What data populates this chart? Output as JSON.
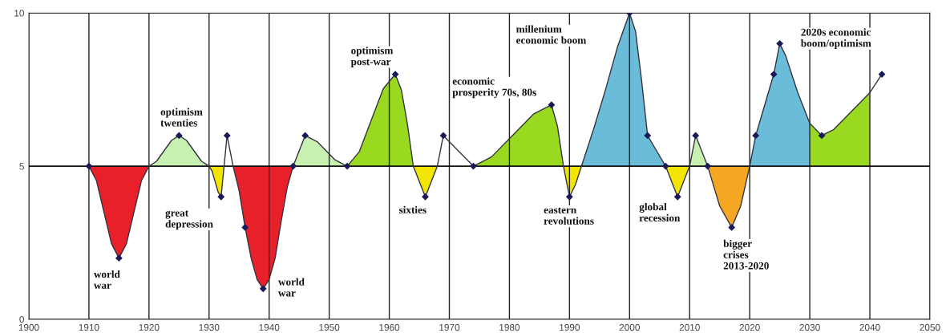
{
  "chart_data": {
    "type": "line",
    "xlim": [
      1900,
      2050
    ],
    "ylim": [
      0,
      10
    ],
    "xticks": [
      1900,
      1910,
      1920,
      1930,
      1940,
      1950,
      1960,
      1970,
      1980,
      1990,
      2000,
      2010,
      2020,
      2030,
      2040,
      2050
    ],
    "yticks": [
      0,
      5,
      10
    ],
    "grid": true,
    "line_style": "solid",
    "ref_lines": [
      {
        "axis": "y",
        "value": 5,
        "color": "#000000"
      }
    ],
    "series": [
      {
        "type": "area",
        "marker": "none",
        "color": "#e8202a",
        "x": [
          1910,
          1911.25,
          1912.5,
          1913.75,
          1915,
          1916.25,
          1917.5,
          1918.75,
          1920
        ],
        "values": [
          5,
          4.53,
          3.5,
          2.47,
          2,
          2.47,
          3.5,
          4.53,
          5
        ]
      },
      {
        "type": "area",
        "marker": "none",
        "color": "#c8f0b0",
        "x": [
          1920,
          1921.25,
          1922.5,
          1923.75,
          1925,
          1926.25,
          1927.5,
          1928.75,
          1930
        ],
        "values": [
          5,
          5.16,
          5.5,
          5.84,
          6,
          5.84,
          5.5,
          5.16,
          5
        ]
      },
      {
        "type": "area",
        "marker": "none",
        "color": "#f2e600",
        "x": [
          1930,
          1930.5,
          1931,
          1931.5,
          1932,
          1932.25,
          1932.5
        ],
        "values": [
          5,
          4.84,
          4.5,
          4.16,
          4,
          4.5,
          5
        ]
      },
      {
        "type": "area",
        "marker": "none",
        "color": "#e8202a",
        "x": [
          1934,
          1935,
          1936,
          1937,
          1938,
          1939,
          1940,
          1941,
          1942,
          1943,
          1944
        ],
        "values": [
          5,
          4.2,
          3,
          2,
          1.3,
          1,
          1.3,
          2,
          3.2,
          4.3,
          5
        ]
      },
      {
        "type": "area",
        "marker": "none",
        "color": "#c8f0b0",
        "x": [
          1944,
          1945,
          1946,
          1948,
          1949.5,
          1951,
          1953
        ],
        "values": [
          5,
          5.5,
          6,
          5.8,
          5.5,
          5.2,
          5
        ]
      },
      {
        "type": "area",
        "marker": "none",
        "color": "#99d91f",
        "x": [
          1953,
          1955,
          1957,
          1959,
          1961,
          1962,
          1963,
          1964
        ],
        "values": [
          5,
          5.47,
          6.5,
          7.53,
          8,
          7.5,
          6.4,
          5
        ]
      },
      {
        "type": "area",
        "marker": "none",
        "color": "#f2e600",
        "x": [
          1964,
          1965,
          1966,
          1967,
          1968
        ],
        "values": [
          5,
          4.5,
          4,
          4.5,
          5
        ]
      },
      {
        "type": "area",
        "marker": "none",
        "color": "#99d91f",
        "x": [
          1974,
          1977,
          1980.5,
          1984,
          1987,
          1988,
          1989
        ],
        "values": [
          5,
          5.3,
          6,
          6.7,
          7,
          6.3,
          5
        ]
      },
      {
        "type": "area",
        "marker": "none",
        "color": "#f2e600",
        "x": [
          1989,
          1990,
          1991,
          1992
        ],
        "values": [
          5,
          4,
          4.4,
          5
        ]
      },
      {
        "type": "area",
        "marker": "none",
        "color": "#6bbcd9",
        "x": [
          1992,
          1994,
          1996,
          1998,
          2000,
          2001,
          2002,
          2003,
          2004.5,
          2006
        ],
        "values": [
          5,
          6.2,
          7.5,
          8.9,
          10,
          9.4,
          7.8,
          6,
          5.5,
          5
        ]
      },
      {
        "type": "area",
        "marker": "none",
        "color": "#f2e600",
        "x": [
          2006,
          2007,
          2008,
          2009,
          2010
        ],
        "values": [
          5,
          4.5,
          4,
          4.5,
          5
        ]
      },
      {
        "type": "area",
        "marker": "none",
        "color": "#c8f0b0",
        "x": [
          2010,
          2011,
          2012,
          2013
        ],
        "values": [
          5,
          6,
          5.5,
          5
        ]
      },
      {
        "type": "area",
        "marker": "none",
        "color": "#f5a623",
        "x": [
          2013,
          2015,
          2017,
          2018.5,
          2020
        ],
        "values": [
          5,
          3.7,
          3,
          3.7,
          5
        ]
      },
      {
        "type": "area",
        "marker": "none",
        "color": "#6bbcd9",
        "x": [
          2020,
          2021,
          2022.5,
          2024,
          2025,
          2026,
          2028,
          2030
        ],
        "values": [
          5,
          6,
          7,
          8,
          9,
          8.6,
          7.4,
          6.4
        ]
      },
      {
        "type": "area",
        "marker": "none",
        "color": "#99d91f",
        "x": [
          2030,
          2032,
          2034,
          2036,
          2038,
          2040
        ],
        "values": [
          6.4,
          6,
          6.2,
          6.6,
          7,
          7.4
        ]
      },
      {
        "color": "#333340",
        "x": [
          1910,
          1911.25,
          1912.5,
          1913.75,
          1915,
          1916.25,
          1917.5,
          1918.75,
          1920,
          1921.25,
          1922.5,
          1923.75,
          1925,
          1926.25,
          1927.5,
          1928.75,
          1930,
          1930.5,
          1931,
          1931.5,
          1932,
          1932.25,
          1932.5,
          1933,
          1934,
          1935,
          1936,
          1937,
          1938,
          1939,
          1940,
          1941,
          1942,
          1943,
          1944,
          1945,
          1946,
          1948,
          1949.5,
          1951,
          1953,
          1955,
          1957,
          1959,
          1961,
          1962,
          1963,
          1964,
          1965,
          1966,
          1967,
          1968,
          1969,
          1971,
          1974,
          1977,
          1980.5,
          1984,
          1987,
          1988,
          1989,
          1990,
          1991,
          1992,
          1994,
          1996,
          1998,
          2000,
          2001,
          2002,
          2003,
          2004.5,
          2006,
          2007,
          2008,
          2009,
          2010,
          2011,
          2012,
          2013,
          2015,
          2017,
          2018.5,
          2020,
          2021,
          2022.5,
          2024,
          2025,
          2026,
          2028,
          2030,
          2032,
          2034,
          2036,
          2038,
          2040,
          2042
        ],
        "values": [
          5,
          4.53,
          3.5,
          2.47,
          2,
          2.47,
          3.5,
          4.53,
          5,
          5.16,
          5.5,
          5.84,
          6,
          5.84,
          5.5,
          5.16,
          5,
          4.84,
          4.5,
          4.16,
          4,
          4.5,
          5,
          6,
          5,
          4.2,
          3,
          2,
          1.3,
          1,
          1.3,
          2,
          3.2,
          4.3,
          5,
          5.5,
          6,
          5.8,
          5.5,
          5.2,
          5,
          5.47,
          6.5,
          7.53,
          8,
          7.5,
          6.4,
          5,
          4.5,
          4,
          4.5,
          5,
          6,
          5.6,
          5,
          5.3,
          6,
          6.7,
          7,
          6.3,
          5,
          4,
          4.4,
          5,
          6.2,
          7.5,
          8.9,
          10,
          9.4,
          7.8,
          6,
          5.5,
          5,
          4.5,
          4,
          4.5,
          5,
          6,
          5.5,
          5,
          3.7,
          3,
          3.7,
          5,
          6,
          7,
          8,
          9,
          8.6,
          7.4,
          6.4,
          6,
          6.2,
          6.6,
          7,
          7.4,
          8
        ]
      },
      {
        "type": "scatter",
        "marker": "diamond",
        "color": "#1a1a5a",
        "x": [
          1910,
          1915,
          1925,
          1932,
          1933,
          1936,
          1939,
          1944,
          1946,
          1953,
          1961,
          1966,
          1969,
          1974,
          1987,
          1990,
          2000,
          2003,
          2006,
          2008,
          2011,
          2013,
          2017,
          2021,
          2024,
          2025,
          2032,
          2042
        ],
        "values": [
          5,
          2,
          6,
          4,
          6,
          3,
          1,
          5,
          6,
          5,
          8,
          4,
          6,
          5,
          7,
          4,
          10,
          6,
          5,
          4,
          6,
          5,
          3,
          6,
          8,
          9,
          6,
          8
        ]
      }
    ],
    "annotations": [
      "world\nwar",
      "optimism\ntwenties",
      "great\ndepression",
      "world\nwar",
      "optimism\npost-war",
      "economic\nprosperity 70s, 80s",
      "sixties",
      "millenium\neconomic boom",
      "eastern\nrevolutions",
      "global\nrecession",
      "bigger\ncrises\n2013-2020",
      "2020s economic\nboom/optimism"
    ]
  }
}
